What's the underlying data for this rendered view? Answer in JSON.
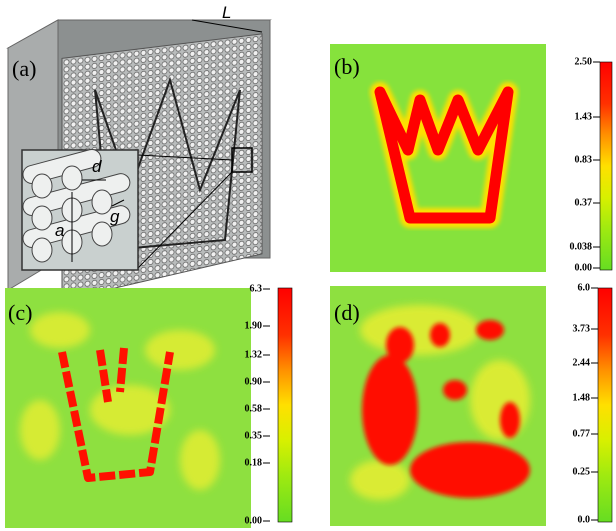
{
  "panels": [
    {
      "label": "(a)",
      "dimensions": {
        "L": "L",
        "d": "d",
        "g": "g",
        "a": "a"
      }
    },
    {
      "label": "(b)",
      "colorbar_ticks": [
        "2.50",
        "1.43",
        "0.83",
        "0.37",
        "0.038",
        "0.00"
      ]
    },
    {
      "label": "(c)",
      "colorbar_ticks": [
        "6.3",
        "1.90",
        "1.32",
        "0.90",
        "0.58",
        "0.35",
        "0.18",
        "0.00"
      ]
    },
    {
      "label": "(d)",
      "colorbar_ticks": [
        "6.0",
        "3.73",
        "2.44",
        "1.48",
        "0.77",
        "0.25",
        "0.0"
      ]
    }
  ]
}
